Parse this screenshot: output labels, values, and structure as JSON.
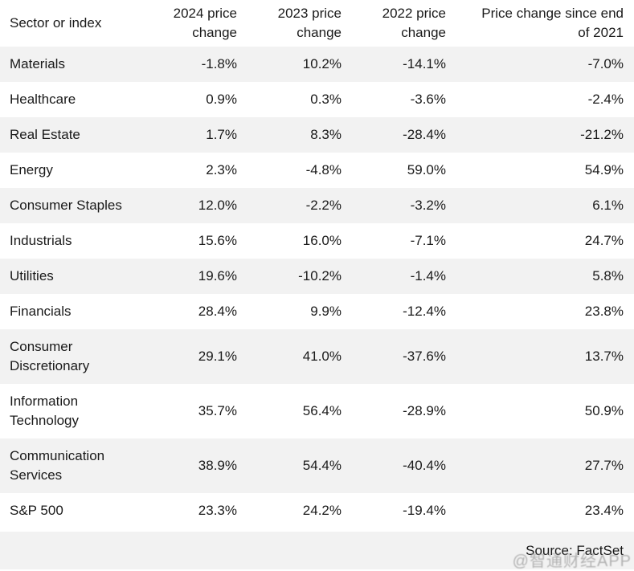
{
  "table": {
    "columns": [
      "Sector or index",
      "2024 price change",
      "2023 price change",
      "2022 price change",
      "Price change since end of 2021"
    ],
    "rows": [
      {
        "sector": "Materials",
        "values": [
          "-1.8%",
          "10.2%",
          "-14.1%",
          "-7.0%"
        ]
      },
      {
        "sector": "Healthcare",
        "values": [
          "0.9%",
          "0.3%",
          "-3.6%",
          "-2.4%"
        ]
      },
      {
        "sector": "Real Estate",
        "values": [
          "1.7%",
          "8.3%",
          "-28.4%",
          "-21.2%"
        ]
      },
      {
        "sector": "Energy",
        "values": [
          "2.3%",
          "-4.8%",
          "59.0%",
          "54.9%"
        ]
      },
      {
        "sector": "Consumer Staples",
        "values": [
          "12.0%",
          "-2.2%",
          "-3.2%",
          "6.1%"
        ]
      },
      {
        "sector": "Industrials",
        "values": [
          "15.6%",
          "16.0%",
          "-7.1%",
          "24.7%"
        ]
      },
      {
        "sector": "Utilities",
        "values": [
          "19.6%",
          "-10.2%",
          "-1.4%",
          "5.8%"
        ]
      },
      {
        "sector": "Financials",
        "values": [
          "28.4%",
          "9.9%",
          "-12.4%",
          "23.8%"
        ]
      },
      {
        "sector": "Consumer Discretionary",
        "values": [
          "29.1%",
          "41.0%",
          "-37.6%",
          "13.7%"
        ]
      },
      {
        "sector": "Information Technology",
        "values": [
          "35.7%",
          "56.4%",
          "-28.9%",
          "50.9%"
        ]
      },
      {
        "sector": "Communication Services",
        "values": [
          "38.9%",
          "54.4%",
          "-40.4%",
          "27.7%"
        ]
      },
      {
        "sector": "S&P 500",
        "values": [
          "23.3%",
          "24.2%",
          "-19.4%",
          "23.4%"
        ]
      }
    ]
  },
  "footer": {
    "source_label": "Source: FactSet"
  },
  "watermark": "@智通财经APP",
  "colors": {
    "stripe": "#f2f2f2",
    "text": "#1a1a1a",
    "background": "#ffffff",
    "watermark_text": "#919191"
  },
  "chart_data": {
    "type": "table",
    "title": "",
    "columns": [
      "Sector or index",
      "2024 price change",
      "2023 price change",
      "2022 price change",
      "Price change since end of 2021"
    ],
    "units": "percent",
    "rows": [
      [
        "Materials",
        -1.8,
        10.2,
        -14.1,
        -7.0
      ],
      [
        "Healthcare",
        0.9,
        0.3,
        -3.6,
        -2.4
      ],
      [
        "Real Estate",
        1.7,
        8.3,
        -28.4,
        -21.2
      ],
      [
        "Energy",
        2.3,
        -4.8,
        59.0,
        54.9
      ],
      [
        "Consumer Staples",
        12.0,
        -2.2,
        -3.2,
        6.1
      ],
      [
        "Industrials",
        15.6,
        16.0,
        -7.1,
        24.7
      ],
      [
        "Utilities",
        19.6,
        -10.2,
        -1.4,
        5.8
      ],
      [
        "Financials",
        28.4,
        9.9,
        -12.4,
        23.8
      ],
      [
        "Consumer Discretionary",
        29.1,
        41.0,
        -37.6,
        13.7
      ],
      [
        "Information Technology",
        35.7,
        56.4,
        -28.9,
        50.9
      ],
      [
        "Communication Services",
        38.9,
        54.4,
        -40.4,
        27.7
      ],
      [
        "S&P 500",
        23.3,
        24.2,
        -19.4,
        23.4
      ]
    ],
    "source": "Source: FactSet",
    "layout": {
      "zebra_striping": true,
      "first_data_row_shaded": true,
      "value_alignment": "right"
    }
  }
}
